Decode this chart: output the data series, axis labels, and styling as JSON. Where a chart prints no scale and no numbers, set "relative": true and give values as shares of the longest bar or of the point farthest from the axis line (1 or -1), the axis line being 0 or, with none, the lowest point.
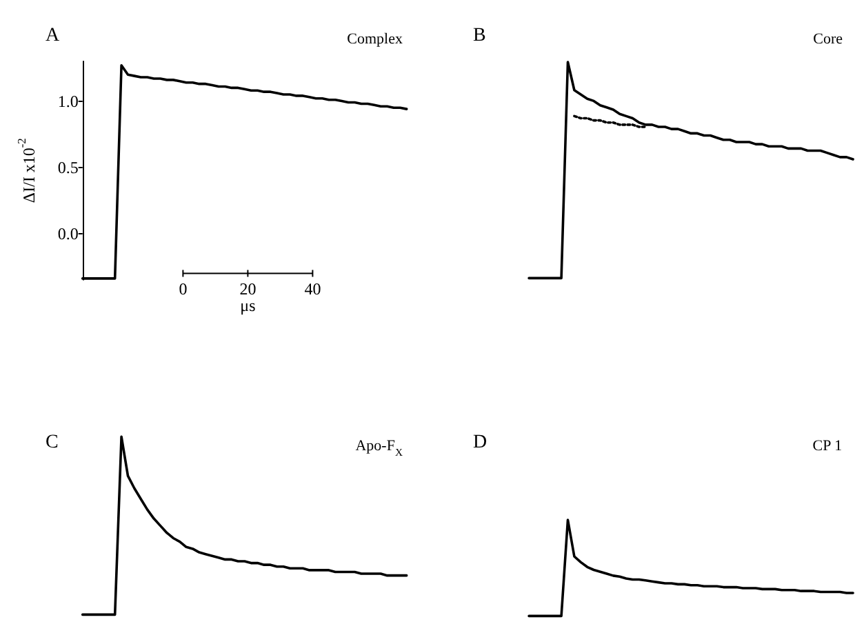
{
  "chart_data": [
    {
      "type": "line",
      "title": "A",
      "subtitle": "Complex",
      "ylabel": "ΔI/I x10$^{-2}$",
      "annotations": [
        "0",
        "20",
        "40",
        "μs"
      ],
      "ylim": [
        -0.35,
        1.3
      ],
      "yticks": [
        {
          "value": 0,
          "label": "0.0"
        },
        {
          "value": 0.5,
          "label": "0.5"
        },
        {
          "value": 1,
          "label": "1.0"
        }
      ],
      "marker": "none",
      "line_style": "solid",
      "categories": [
        null,
        null,
        null,
        null,
        null,
        null,
        null,
        null,
        null,
        null,
        null,
        null,
        null,
        null,
        null,
        null,
        null,
        null,
        null,
        null,
        null,
        null,
        null,
        null,
        null,
        null,
        null,
        null,
        null,
        null,
        null,
        null,
        null,
        null,
        null,
        null,
        null,
        null,
        null,
        null,
        null,
        null,
        null,
        null,
        null,
        null,
        null,
        null,
        null,
        null,
        null
      ],
      "series": [
        {
          "color": "#000000",
          "values": [
            -0.34,
            -0.34,
            -0.34,
            -0.34,
            -0.34,
            -0.34,
            1.27,
            1.2,
            1.19,
            1.18,
            1.18,
            1.17,
            1.17,
            1.16,
            1.16,
            1.15,
            1.14,
            1.14,
            1.13,
            1.13,
            1.12,
            1.11,
            1.11,
            1.1,
            1.1,
            1.09,
            1.08,
            1.08,
            1.07,
            1.07,
            1.06,
            1.05,
            1.05,
            1.04,
            1.04,
            1.03,
            1.02,
            1.02,
            1.01,
            1.01,
            1.0,
            0.99,
            0.99,
            0.98,
            0.98,
            0.97,
            0.96,
            0.96,
            0.95,
            0.95,
            0.94
          ]
        }
      ]
    },
    {
      "type": "line",
      "title": "B",
      "subtitle": "Core",
      "relative": true,
      "marker": "none",
      "line_style": "solid",
      "categories": [
        null,
        null,
        null,
        null,
        null,
        null,
        null,
        null,
        null,
        null,
        null,
        null,
        null,
        null,
        null,
        null,
        null,
        null,
        null,
        null,
        null,
        null,
        null,
        null,
        null,
        null,
        null,
        null,
        null,
        null,
        null,
        null,
        null,
        null,
        null,
        null,
        null,
        null,
        null,
        null,
        null,
        null,
        null,
        null,
        null,
        null,
        null,
        null,
        null,
        null,
        null
      ],
      "series": [
        {
          "color": "#000000",
          "values": [
            0,
            0,
            0,
            0,
            0,
            0,
            1,
            0.87,
            0.85,
            0.83,
            0.82,
            0.8,
            0.79,
            0.78,
            0.76,
            0.75,
            0.74,
            0.72,
            0.71,
            0.71,
            0.7,
            0.7,
            0.69,
            0.69,
            0.68,
            0.67,
            0.67,
            0.66,
            0.66,
            0.65,
            0.64,
            0.64,
            0.63,
            0.63,
            0.63,
            0.62,
            0.62,
            0.61,
            0.61,
            0.61,
            0.6,
            0.6,
            0.6,
            0.59,
            0.59,
            0.59,
            0.58,
            0.57,
            0.56,
            0.56,
            0.55
          ]
        },
        {
          "color": "#000000",
          "line_style": "dotted",
          "values": [
            null,
            null,
            null,
            null,
            null,
            null,
            null,
            0.75,
            0.74,
            0.74,
            0.73,
            0.73,
            0.72,
            0.72,
            0.71,
            0.71,
            0.71,
            0.7,
            0.7,
            null,
            null,
            null,
            null,
            null,
            null,
            null,
            null,
            null,
            null,
            null,
            null,
            null,
            null,
            null,
            null,
            null,
            null,
            null,
            null,
            null,
            null,
            null,
            null,
            null,
            null,
            null,
            null,
            null,
            null,
            null,
            null
          ]
        }
      ]
    },
    {
      "type": "line",
      "title": "C",
      "subtitle": "Apo-F$_{X}$",
      "relative": true,
      "marker": "none",
      "line_style": "solid",
      "categories": [
        null,
        null,
        null,
        null,
        null,
        null,
        null,
        null,
        null,
        null,
        null,
        null,
        null,
        null,
        null,
        null,
        null,
        null,
        null,
        null,
        null,
        null,
        null,
        null,
        null,
        null,
        null,
        null,
        null,
        null,
        null,
        null,
        null,
        null,
        null,
        null,
        null,
        null,
        null,
        null,
        null,
        null,
        null,
        null,
        null,
        null,
        null,
        null,
        null,
        null,
        null
      ],
      "series": [
        {
          "color": "#000000",
          "values": [
            0,
            0,
            0,
            0,
            0,
            0,
            1,
            0.78,
            0.71,
            0.65,
            0.59,
            0.54,
            0.5,
            0.46,
            0.43,
            0.41,
            0.38,
            0.37,
            0.35,
            0.34,
            0.33,
            0.32,
            0.31,
            0.31,
            0.3,
            0.3,
            0.29,
            0.29,
            0.28,
            0.28,
            0.27,
            0.27,
            0.26,
            0.26,
            0.26,
            0.25,
            0.25,
            0.25,
            0.25,
            0.24,
            0.24,
            0.24,
            0.24,
            0.23,
            0.23,
            0.23,
            0.23,
            0.22,
            0.22,
            0.22,
            0.22
          ]
        }
      ]
    },
    {
      "type": "line",
      "title": "D",
      "subtitle": "CP 1",
      "relative": true,
      "marker": "none",
      "line_style": "solid",
      "categories": [
        null,
        null,
        null,
        null,
        null,
        null,
        null,
        null,
        null,
        null,
        null,
        null,
        null,
        null,
        null,
        null,
        null,
        null,
        null,
        null,
        null,
        null,
        null,
        null,
        null,
        null,
        null,
        null,
        null,
        null,
        null,
        null,
        null,
        null,
        null,
        null,
        null,
        null,
        null,
        null,
        null,
        null,
        null,
        null,
        null,
        null,
        null,
        null,
        null,
        null,
        null
      ],
      "series": [
        {
          "color": "#000000",
          "values": [
            0,
            0,
            0,
            0,
            0,
            0,
            1,
            0.62,
            0.56,
            0.51,
            0.48,
            0.46,
            0.44,
            0.42,
            0.41,
            0.39,
            0.38,
            0.38,
            0.37,
            0.36,
            0.35,
            0.34,
            0.34,
            0.33,
            0.33,
            0.32,
            0.32,
            0.31,
            0.31,
            0.31,
            0.3,
            0.3,
            0.3,
            0.29,
            0.29,
            0.29,
            0.28,
            0.28,
            0.28,
            0.27,
            0.27,
            0.27,
            0.26,
            0.26,
            0.26,
            0.25,
            0.25,
            0.25,
            0.25,
            0.24,
            0.24
          ]
        }
      ]
    }
  ]
}
